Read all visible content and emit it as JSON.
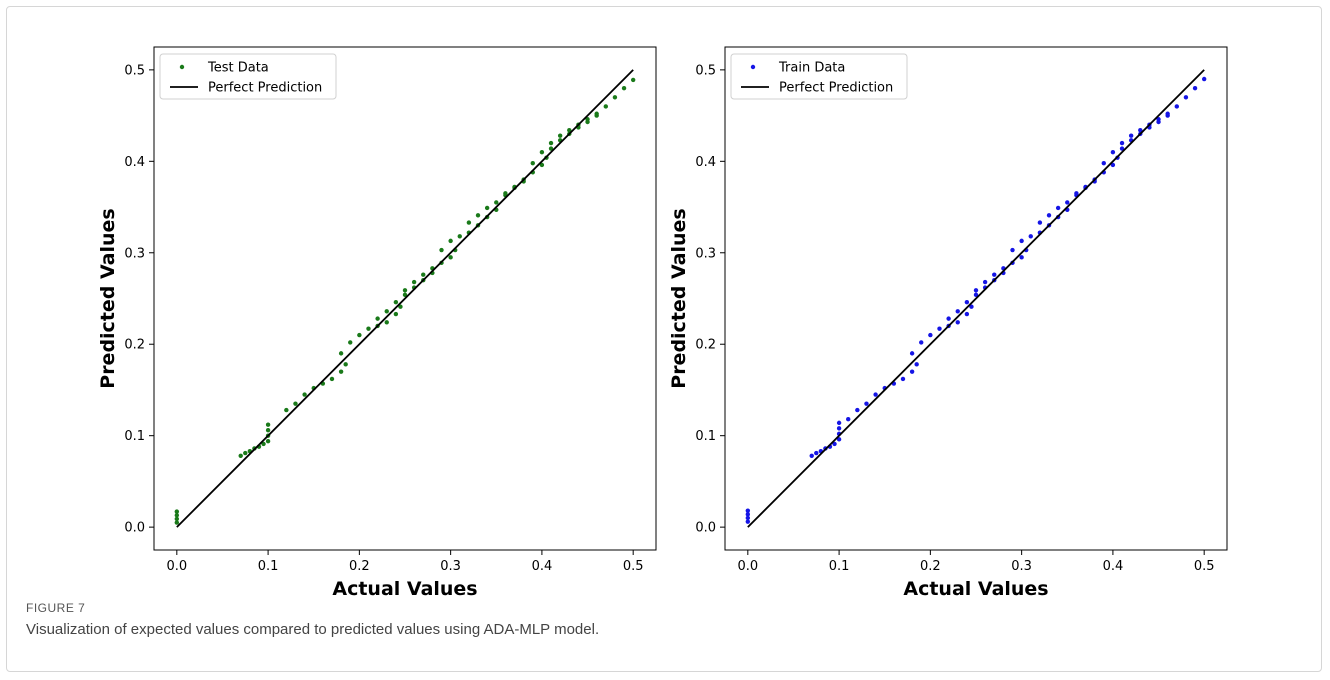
{
  "caption": {
    "label": "FIGURE 7",
    "text": "Visualization of expected values compared to predicted values using ADA-MLP model."
  },
  "chart_data": [
    {
      "type": "scatter",
      "title": "",
      "xlabel": "Actual Values",
      "ylabel": "Predicted Values",
      "xlim": [
        -0.025,
        0.525
      ],
      "ylim": [
        -0.025,
        0.525
      ],
      "xticks": [
        "0.0",
        "0.1",
        "0.2",
        "0.3",
        "0.4",
        "0.5"
      ],
      "yticks": [
        "0.0",
        "0.1",
        "0.2",
        "0.3",
        "0.4",
        "0.5"
      ],
      "grid": false,
      "legend_position": "top-left",
      "series": [
        {
          "name": "Test Data",
          "kind": "scatter",
          "color": "#1a7a1a",
          "points": [
            [
              0.0,
              0.005
            ],
            [
              0.0,
              0.009
            ],
            [
              0.0,
              0.013
            ],
            [
              0.0,
              0.017
            ],
            [
              0.07,
              0.078
            ],
            [
              0.075,
              0.081
            ],
            [
              0.08,
              0.083
            ],
            [
              0.085,
              0.086
            ],
            [
              0.09,
              0.088
            ],
            [
              0.095,
              0.091
            ],
            [
              0.1,
              0.094
            ],
            [
              0.1,
              0.1
            ],
            [
              0.1,
              0.106
            ],
            [
              0.1,
              0.112
            ],
            [
              0.12,
              0.128
            ],
            [
              0.13,
              0.135
            ],
            [
              0.14,
              0.145
            ],
            [
              0.15,
              0.152
            ],
            [
              0.16,
              0.157
            ],
            [
              0.17,
              0.162
            ],
            [
              0.18,
              0.17
            ],
            [
              0.185,
              0.178
            ],
            [
              0.18,
              0.19
            ],
            [
              0.19,
              0.202
            ],
            [
              0.2,
              0.21
            ],
            [
              0.21,
              0.217
            ],
            [
              0.22,
              0.22
            ],
            [
              0.23,
              0.224
            ],
            [
              0.24,
              0.233
            ],
            [
              0.245,
              0.241
            ],
            [
              0.22,
              0.228
            ],
            [
              0.23,
              0.236
            ],
            [
              0.24,
              0.246
            ],
            [
              0.25,
              0.254
            ],
            [
              0.26,
              0.262
            ],
            [
              0.27,
              0.27
            ],
            [
              0.28,
              0.278
            ],
            [
              0.25,
              0.259
            ],
            [
              0.26,
              0.268
            ],
            [
              0.27,
              0.276
            ],
            [
              0.28,
              0.283
            ],
            [
              0.29,
              0.289
            ],
            [
              0.3,
              0.295
            ],
            [
              0.305,
              0.303
            ],
            [
              0.29,
              0.303
            ],
            [
              0.3,
              0.313
            ],
            [
              0.31,
              0.318
            ],
            [
              0.32,
              0.322
            ],
            [
              0.33,
              0.33
            ],
            [
              0.34,
              0.339
            ],
            [
              0.35,
              0.347
            ],
            [
              0.32,
              0.333
            ],
            [
              0.33,
              0.341
            ],
            [
              0.34,
              0.349
            ],
            [
              0.35,
              0.355
            ],
            [
              0.36,
              0.363
            ],
            [
              0.37,
              0.371
            ],
            [
              0.38,
              0.378
            ],
            [
              0.36,
              0.365
            ],
            [
              0.37,
              0.372
            ],
            [
              0.38,
              0.38
            ],
            [
              0.39,
              0.388
            ],
            [
              0.4,
              0.396
            ],
            [
              0.405,
              0.404
            ],
            [
              0.39,
              0.398
            ],
            [
              0.4,
              0.41
            ],
            [
              0.41,
              0.42
            ],
            [
              0.42,
              0.428
            ],
            [
              0.43,
              0.434
            ],
            [
              0.44,
              0.44
            ],
            [
              0.45,
              0.446
            ],
            [
              0.46,
              0.452
            ],
            [
              0.41,
              0.414
            ],
            [
              0.42,
              0.423
            ],
            [
              0.43,
              0.43
            ],
            [
              0.44,
              0.437
            ],
            [
              0.45,
              0.443
            ],
            [
              0.46,
              0.45
            ],
            [
              0.47,
              0.46
            ],
            [
              0.48,
              0.47
            ],
            [
              0.49,
              0.48
            ],
            [
              0.5,
              0.489
            ]
          ]
        },
        {
          "name": "Perfect Prediction",
          "kind": "line",
          "color": "#000000",
          "points": [
            [
              0.0,
              0.0
            ],
            [
              0.5,
              0.5
            ]
          ]
        }
      ]
    },
    {
      "type": "scatter",
      "title": "",
      "xlabel": "Actual Values",
      "ylabel": "Predicted Values",
      "xlim": [
        -0.025,
        0.525
      ],
      "ylim": [
        -0.025,
        0.525
      ],
      "xticks": [
        "0.0",
        "0.1",
        "0.2",
        "0.3",
        "0.4",
        "0.5"
      ],
      "yticks": [
        "0.0",
        "0.1",
        "0.2",
        "0.3",
        "0.4",
        "0.5"
      ],
      "grid": false,
      "legend_position": "top-left",
      "series": [
        {
          "name": "Train Data",
          "kind": "scatter",
          "color": "#1515e6",
          "points": [
            [
              0.0,
              0.006
            ],
            [
              0.0,
              0.01
            ],
            [
              0.0,
              0.014
            ],
            [
              0.0,
              0.018
            ],
            [
              0.07,
              0.078
            ],
            [
              0.075,
              0.081
            ],
            [
              0.08,
              0.083
            ],
            [
              0.085,
              0.086
            ],
            [
              0.09,
              0.088
            ],
            [
              0.095,
              0.091
            ],
            [
              0.1,
              0.096
            ],
            [
              0.1,
              0.102
            ],
            [
              0.1,
              0.108
            ],
            [
              0.1,
              0.114
            ],
            [
              0.11,
              0.118
            ],
            [
              0.12,
              0.128
            ],
            [
              0.13,
              0.135
            ],
            [
              0.14,
              0.145
            ],
            [
              0.15,
              0.152
            ],
            [
              0.16,
              0.157
            ],
            [
              0.17,
              0.162
            ],
            [
              0.18,
              0.17
            ],
            [
              0.185,
              0.178
            ],
            [
              0.18,
              0.19
            ],
            [
              0.19,
              0.202
            ],
            [
              0.2,
              0.21
            ],
            [
              0.21,
              0.217
            ],
            [
              0.22,
              0.22
            ],
            [
              0.23,
              0.224
            ],
            [
              0.24,
              0.233
            ],
            [
              0.245,
              0.241
            ],
            [
              0.22,
              0.228
            ],
            [
              0.23,
              0.236
            ],
            [
              0.24,
              0.246
            ],
            [
              0.25,
              0.254
            ],
            [
              0.26,
              0.262
            ],
            [
              0.27,
              0.27
            ],
            [
              0.28,
              0.278
            ],
            [
              0.25,
              0.259
            ],
            [
              0.26,
              0.268
            ],
            [
              0.27,
              0.276
            ],
            [
              0.28,
              0.283
            ],
            [
              0.29,
              0.289
            ],
            [
              0.3,
              0.295
            ],
            [
              0.305,
              0.303
            ],
            [
              0.29,
              0.303
            ],
            [
              0.3,
              0.313
            ],
            [
              0.31,
              0.318
            ],
            [
              0.32,
              0.322
            ],
            [
              0.33,
              0.33
            ],
            [
              0.34,
              0.339
            ],
            [
              0.35,
              0.347
            ],
            [
              0.32,
              0.333
            ],
            [
              0.33,
              0.341
            ],
            [
              0.34,
              0.349
            ],
            [
              0.35,
              0.355
            ],
            [
              0.36,
              0.363
            ],
            [
              0.37,
              0.371
            ],
            [
              0.38,
              0.378
            ],
            [
              0.36,
              0.365
            ],
            [
              0.37,
              0.372
            ],
            [
              0.38,
              0.38
            ],
            [
              0.39,
              0.388
            ],
            [
              0.4,
              0.396
            ],
            [
              0.405,
              0.404
            ],
            [
              0.39,
              0.398
            ],
            [
              0.4,
              0.41
            ],
            [
              0.41,
              0.42
            ],
            [
              0.42,
              0.428
            ],
            [
              0.43,
              0.434
            ],
            [
              0.44,
              0.44
            ],
            [
              0.45,
              0.446
            ],
            [
              0.46,
              0.452
            ],
            [
              0.41,
              0.414
            ],
            [
              0.42,
              0.423
            ],
            [
              0.43,
              0.43
            ],
            [
              0.44,
              0.437
            ],
            [
              0.45,
              0.443
            ],
            [
              0.46,
              0.45
            ],
            [
              0.47,
              0.46
            ],
            [
              0.48,
              0.47
            ],
            [
              0.49,
              0.48
            ],
            [
              0.5,
              0.49
            ]
          ]
        },
        {
          "name": "Perfect Prediction",
          "kind": "line",
          "color": "#000000",
          "points": [
            [
              0.0,
              0.0
            ],
            [
              0.5,
              0.5
            ]
          ]
        }
      ]
    }
  ]
}
